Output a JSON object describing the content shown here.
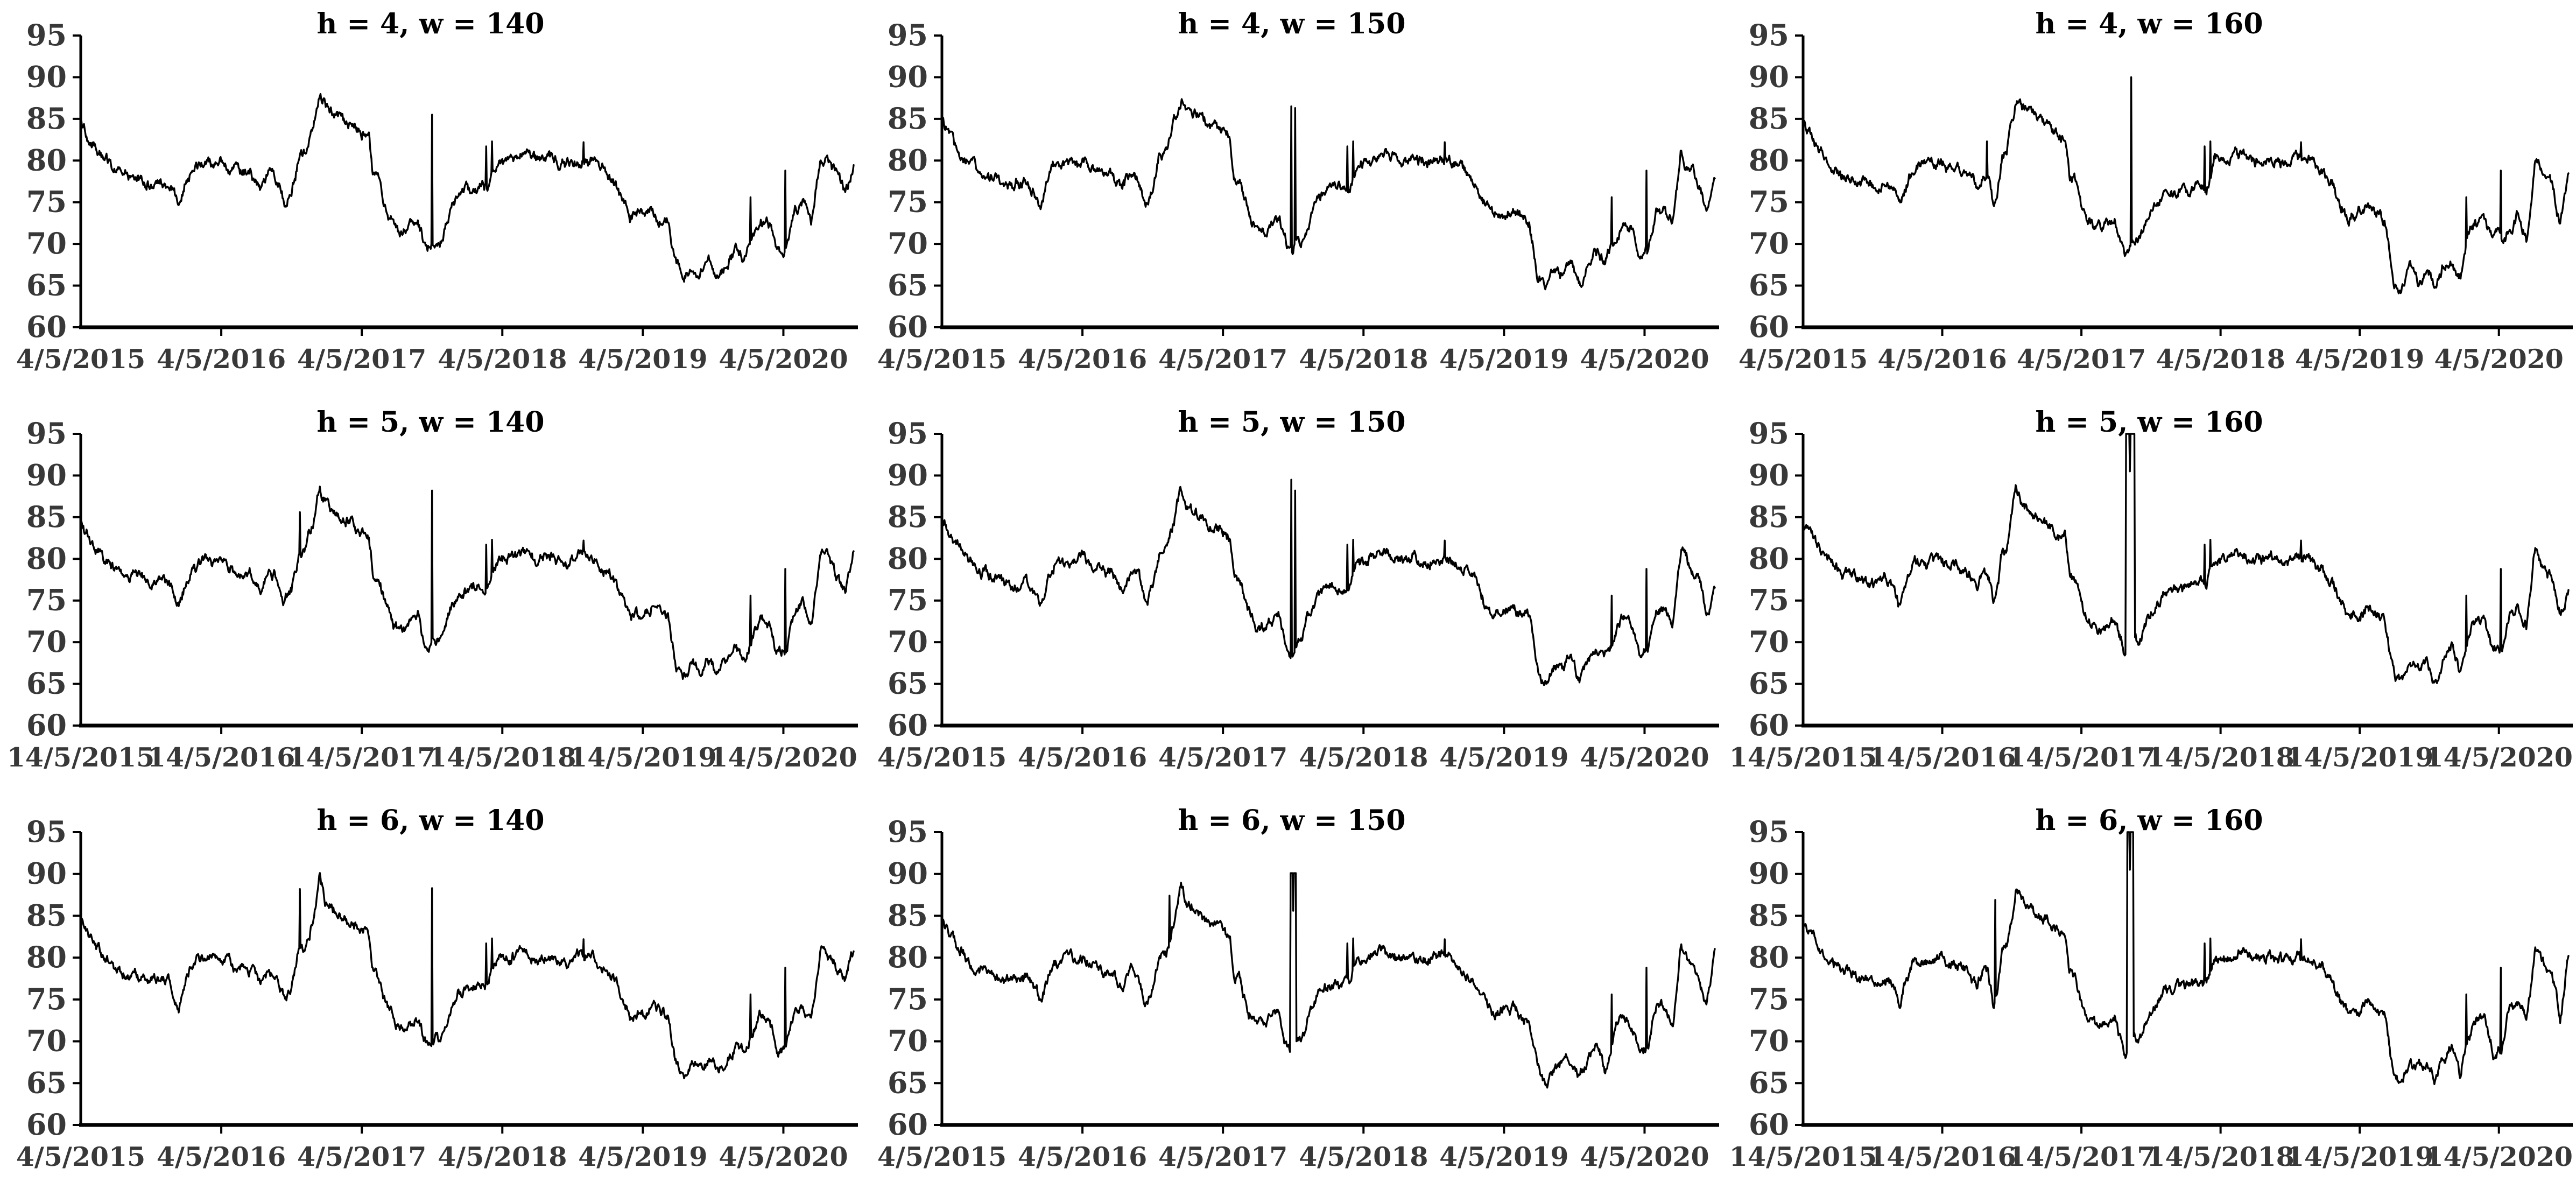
{
  "style": {
    "background": "#ffffff",
    "series_color": "#000000",
    "axis_color": "#000000",
    "tick_label_color": "#383838",
    "title_color": "#000000"
  },
  "chart_data": {
    "type": "line",
    "grid": [
      3,
      3
    ],
    "ylim": [
      60,
      95
    ],
    "yticks": [
      60,
      65,
      70,
      75,
      80,
      85,
      90,
      95
    ],
    "x_span_years": 5.5,
    "legend": "none",
    "gridlines": false,
    "base_anchors": [
      [
        0.0,
        84.6
      ],
      [
        0.05,
        83.0
      ],
      [
        0.12,
        81.2
      ],
      [
        0.2,
        79.6
      ],
      [
        0.3,
        78.3
      ],
      [
        0.4,
        77.6
      ],
      [
        0.5,
        77.0
      ],
      [
        0.58,
        77.4
      ],
      [
        0.64,
        76.6
      ],
      [
        0.7,
        74.4
      ],
      [
        0.74,
        76.8
      ],
      [
        0.8,
        79.2
      ],
      [
        0.9,
        79.6
      ],
      [
        1.0,
        79.8
      ],
      [
        1.1,
        78.9
      ],
      [
        1.2,
        78.4
      ],
      [
        1.28,
        76.4
      ],
      [
        1.34,
        78.4
      ],
      [
        1.4,
        78.0
      ],
      [
        1.45,
        74.6
      ],
      [
        1.5,
        76.2
      ],
      [
        1.55,
        80.4
      ],
      [
        1.6,
        81.0
      ],
      [
        1.65,
        84.5
      ],
      [
        1.7,
        87.4
      ],
      [
        1.74,
        86.6
      ],
      [
        1.8,
        85.8
      ],
      [
        1.86,
        85.0
      ],
      [
        1.92,
        84.2
      ],
      [
        2.0,
        83.2
      ],
      [
        2.05,
        82.8
      ],
      [
        2.08,
        78.0
      ],
      [
        2.12,
        77.6
      ],
      [
        2.18,
        73.8
      ],
      [
        2.24,
        72.0
      ],
      [
        2.3,
        71.6
      ],
      [
        2.36,
        72.6
      ],
      [
        2.4,
        72.9
      ],
      [
        2.44,
        70.4
      ],
      [
        2.48,
        69.8
      ],
      [
        2.52,
        70.1
      ],
      [
        2.56,
        70.4
      ],
      [
        2.62,
        73.4
      ],
      [
        2.68,
        75.9
      ],
      [
        2.75,
        76.5
      ],
      [
        2.82,
        76.6
      ],
      [
        2.9,
        76.8
      ],
      [
        2.96,
        79.8
      ],
      [
        3.05,
        80.1
      ],
      [
        3.15,
        80.9
      ],
      [
        3.25,
        79.9
      ],
      [
        3.35,
        80.3
      ],
      [
        3.45,
        79.7
      ],
      [
        3.55,
        80.2
      ],
      [
        3.65,
        79.8
      ],
      [
        3.72,
        78.9
      ],
      [
        3.8,
        77.2
      ],
      [
        3.86,
        74.9
      ],
      [
        3.92,
        73.2
      ],
      [
        4.0,
        73.5
      ],
      [
        4.06,
        74.4
      ],
      [
        4.12,
        73.4
      ],
      [
        4.18,
        72.9
      ],
      [
        4.24,
        67.2
      ],
      [
        4.3,
        66.4
      ],
      [
        4.36,
        67.2
      ],
      [
        4.42,
        67.0
      ],
      [
        4.48,
        67.6
      ],
      [
        4.54,
        66.6
      ],
      [
        4.6,
        67.6
      ],
      [
        4.66,
        69.4
      ],
      [
        4.72,
        68.4
      ],
      [
        4.78,
        70.6
      ],
      [
        4.84,
        72.8
      ],
      [
        4.9,
        72.4
      ],
      [
        4.96,
        68.8
      ],
      [
        5.02,
        69.2
      ],
      [
        5.08,
        74.0
      ],
      [
        5.14,
        74.4
      ],
      [
        5.2,
        72.2
      ],
      [
        5.26,
        80.2
      ],
      [
        5.32,
        79.6
      ],
      [
        5.38,
        78.4
      ],
      [
        5.44,
        76.3
      ],
      [
        5.5,
        79.2
      ]
    ],
    "common_spikes": [
      {
        "x": 2.885,
        "top": 81.7,
        "kind": "needle"
      },
      {
        "x": 2.925,
        "top": 82.3,
        "kind": "needle"
      },
      {
        "x": 3.58,
        "top": 82.2,
        "kind": "needle"
      },
      {
        "x": 4.765,
        "top": 75.6,
        "kind": "needle"
      },
      {
        "x": 5.015,
        "top": 78.8,
        "kind": "needle"
      }
    ],
    "charts": [
      {
        "title": "h = 4, w = 140",
        "seed": 11,
        "x_tick_labels": [
          "4/5/2015",
          "4/5/2016",
          "4/5/2017",
          "4/5/2018",
          "4/5/2019",
          "4/5/2020"
        ],
        "edits": {},
        "spikes": [
          {
            "x": 2.5,
            "top": 85.5,
            "kind": "needle"
          }
        ]
      },
      {
        "title": "h = 4, w = 150",
        "seed": 22,
        "x_tick_labels": [
          "4/5/2015",
          "4/5/2016",
          "4/5/2017",
          "4/5/2018",
          "4/5/2019",
          "4/5/2020"
        ],
        "edits": {
          "24": 87.2,
          "39": 68.4,
          "63": 66.0,
          "64": 64.6,
          "66": 66.2,
          "68": 65.4,
          "80": 80.8,
          "81": 78.8,
          "82": 77.6,
          "83": 73.4,
          "84": 77.9
        },
        "spikes": [
          {
            "x": 2.5,
            "top": 86.5,
            "top2": 86.3,
            "gap": 0.024,
            "kind": "double"
          }
        ]
      },
      {
        "title": "h = 4, w = 160",
        "seed": 33,
        "x_tick_labels": [
          "4/5/2015",
          "4/5/2016",
          "4/5/2017",
          "4/5/2018",
          "4/5/2019",
          "4/5/2020"
        ],
        "warp": [
          [
            1.2,
            1.2
          ],
          [
            1.7,
            1.53
          ],
          [
            2.52,
            2.36
          ],
          [
            2.9,
            2.9
          ]
        ],
        "edits": {
          "24": 86.8,
          "39": 68.4,
          "63": 65.6,
          "64": 64.2,
          "66": 65.2,
          "68": 64.3,
          "70": 67.5,
          "71": 65.9,
          "73": 72.6,
          "74": 72.1,
          "75": 70.8,
          "76": 70.9,
          "77": 71.2,
          "78": 74.0,
          "79": 71.0,
          "80": 80.1,
          "81": 78.6,
          "82": 77.3,
          "83": 72.6,
          "84": 78.7
        },
        "spikes": [
          {
            "x": 1.32,
            "top": 82.3,
            "kind": "needle"
          },
          {
            "x": 2.36,
            "top": 90.0,
            "kind": "needle"
          }
        ]
      },
      {
        "title": "h = 5, w = 140",
        "seed": 44,
        "x_tick_labels": [
          "14/5/2015",
          "14/5/2016",
          "14/5/2017",
          "14/5/2018",
          "14/5/2019",
          "14/5/2020"
        ],
        "edits": {
          "24": 88.6,
          "64": 65.9,
          "80": 80.6,
          "81": 80.0,
          "82": 78.2,
          "83": 75.8,
          "84": 80.9
        },
        "spikes": [
          {
            "x": 1.56,
            "top": 85.6,
            "kind": "needle"
          },
          {
            "x": 2.5,
            "top": 88.2,
            "kind": "needle"
          }
        ]
      },
      {
        "title": "h = 5, w = 150",
        "seed": 55,
        "x_tick_labels": [
          "4/5/2015",
          "4/5/2016",
          "4/5/2017",
          "4/5/2018",
          "4/5/2019",
          "4/5/2020"
        ],
        "edits": {
          "24": 88.0,
          "39": 68.6,
          "63": 66.4,
          "64": 64.9,
          "68": 65.2,
          "80": 80.9,
          "81": 79.2,
          "82": 78.0,
          "83": 73.6,
          "84": 76.1
        },
        "spikes": [
          {
            "x": 2.5,
            "top": 89.5,
            "top2": 88.2,
            "gap": 0.024,
            "kind": "double"
          }
        ]
      },
      {
        "title": "h = 5, w = 160",
        "seed": 66,
        "x_tick_labels": [
          "14/5/2015",
          "14/5/2016",
          "14/5/2017",
          "14/5/2018",
          "14/5/2019",
          "14/5/2020"
        ],
        "warp": [
          [
            1.2,
            1.2
          ],
          [
            1.7,
            1.53
          ],
          [
            2.52,
            2.36
          ],
          [
            2.9,
            2.9
          ]
        ],
        "edits": {
          "24": 88.8,
          "39": 68.2,
          "63": 66.2,
          "64": 64.8,
          "68": 65.0,
          "71": 66.0,
          "80": 81.4,
          "81": 78.9,
          "82": 78.0,
          "83": 73.9,
          "84": 76.2
        },
        "spikes": [
          {
            "x": 2.35,
            "top": 95,
            "width": 0.06,
            "drop": 70.6,
            "kind": "pulse"
          }
        ]
      },
      {
        "title": "h = 6, w = 140",
        "seed": 77,
        "x_tick_labels": [
          "4/5/2015",
          "4/5/2016",
          "4/5/2017",
          "4/5/2018",
          "4/5/2019",
          "4/5/2020"
        ],
        "edits": {
          "24": 89.5,
          "63": 67.0,
          "64": 66.0,
          "80": 81.2,
          "81": 80.2,
          "82": 78.4,
          "83": 77.8,
          "84": 81.0
        },
        "spikes": [
          {
            "x": 1.56,
            "top": 88.2,
            "kind": "needle"
          },
          {
            "x": 2.5,
            "top": 88.3,
            "kind": "needle"
          }
        ]
      },
      {
        "title": "h = 6, w = 150",
        "seed": 88,
        "x_tick_labels": [
          "4/5/2015",
          "4/5/2016",
          "4/5/2017",
          "4/5/2018",
          "4/5/2019",
          "4/5/2020"
        ],
        "edits": {
          "24": 89.0,
          "39": 68.8,
          "63": 66.8,
          "64": 64.9,
          "68": 65.6,
          "71": 66.8,
          "80": 81.4,
          "81": 79.6,
          "82": 78.0,
          "83": 74.0,
          "84": 80.6
        },
        "spikes": [
          {
            "x": 1.62,
            "top": 87.4,
            "kind": "needle"
          },
          {
            "x": 2.5,
            "top": 90.1,
            "width": 0.035,
            "drop": 70.0,
            "kind": "pulse"
          }
        ]
      },
      {
        "title": "h = 6, w = 160",
        "seed": 99,
        "x_tick_labels": [
          "14/5/2015",
          "14/5/2016",
          "14/5/2017",
          "14/5/2018",
          "14/5/2019",
          "14/5/2020"
        ],
        "warp": [
          [
            1.2,
            1.2
          ],
          [
            1.7,
            1.53
          ],
          [
            2.52,
            2.36
          ],
          [
            2.9,
            2.9
          ]
        ],
        "edits": {
          "24": 88.8,
          "39": 68.3,
          "63": 66.3,
          "64": 64.6,
          "66": 66.2,
          "68": 65.4,
          "71": 66.0,
          "80": 80.6,
          "81": 79.0,
          "82": 78.3,
          "83": 73.2,
          "84": 80.3
        },
        "spikes": [
          {
            "x": 1.38,
            "top": 86.9,
            "kind": "needle"
          },
          {
            "x": 2.35,
            "top": 95,
            "width": 0.04,
            "drop": 70.6,
            "kind": "pulse"
          }
        ]
      }
    ]
  }
}
